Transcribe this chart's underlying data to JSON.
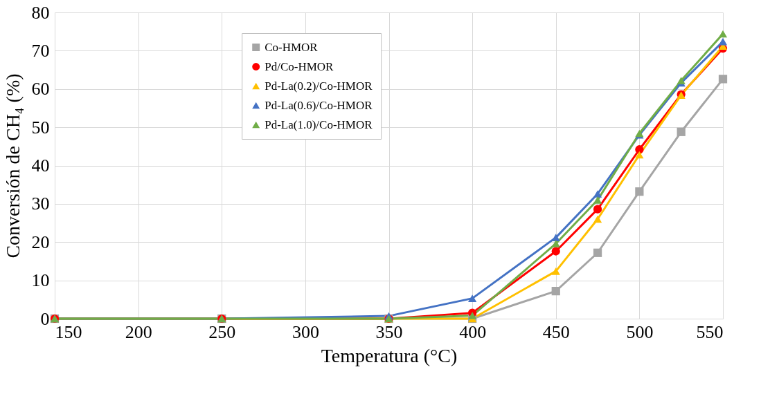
{
  "chart_data": {
    "type": "line",
    "xlabel": "Temperatura (°C)",
    "ylabel": "Conversión de CH₄ (%)",
    "x": [
      150,
      250,
      350,
      400,
      450,
      475,
      500,
      525,
      550
    ],
    "series": [
      {
        "name": "Co-HMOR",
        "color": "#a5a5a5",
        "marker": "square",
        "values": [
          0,
          0,
          0,
          0,
          7.2,
          17.2,
          33.2,
          48.8,
          62.6
        ]
      },
      {
        "name": "Pd/Co-HMOR",
        "color": "#ff0000",
        "marker": "circle",
        "values": [
          0,
          0,
          0,
          1.5,
          17.6,
          28.6,
          44.2,
          58.6,
          70.6
        ]
      },
      {
        "name": "Pd-La(0.2)/Co-HMOR",
        "color": "#ffc000",
        "marker": "triangle",
        "values": [
          0,
          0,
          0,
          0,
          12.4,
          26,
          42.8,
          58.4,
          71.2
        ]
      },
      {
        "name": "Pd-La(0.6)/Co-HMOR",
        "color": "#4472c4",
        "marker": "triangle",
        "values": [
          0,
          0,
          0.7,
          5.3,
          21.2,
          32.6,
          48,
          61.6,
          72.4
        ]
      },
      {
        "name": "Pd-La(1.0)/Co-HMOR",
        "color": "#70ad47",
        "marker": "triangle",
        "values": [
          0,
          0,
          0,
          0.8,
          19.6,
          31,
          48.4,
          62.2,
          74.4
        ]
      }
    ],
    "xlim": [
      150,
      550
    ],
    "xticks": [
      150,
      200,
      250,
      300,
      350,
      400,
      450,
      500,
      550
    ],
    "ylim": [
      0,
      80
    ],
    "yticks": [
      0,
      10,
      20,
      30,
      40,
      50,
      60,
      70,
      80
    ],
    "grid": true,
    "legend": "top",
    "line_style": "solid"
  }
}
